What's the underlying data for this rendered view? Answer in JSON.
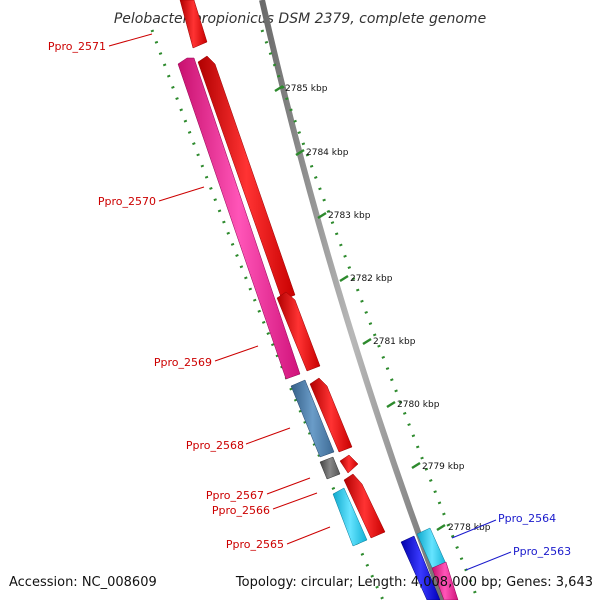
{
  "title": "Pelobacter propionicus DSM 2379, complete genome",
  "accession_text": "Accession: NC_008609",
  "summary_text": "Topology: circular; Length: 4,008,000 bp; Genes: 3,643",
  "colors": {
    "backbone": "#8a8a8a",
    "tick": "#2d8a2d",
    "label_red": "#cc0000",
    "label_blue": "#1a1acc",
    "gene_red": "#ee1111",
    "gene_pink": "#ee2299",
    "gene_steelblue": "#4a7fb0",
    "gene_gray": "#666666",
    "gene_cyan": "#22ccee",
    "gene_blue": "#1010dd"
  },
  "kbp_markers": [
    "2785 kbp",
    "2784 kbp",
    "2783 kbp",
    "2782 kbp",
    "2781 kbp",
    "2780 kbp",
    "2779 kbp",
    "2778 kbp"
  ],
  "gene_labels": [
    "Ppro_2571",
    "Ppro_2570",
    "Ppro_2569",
    "Ppro_2568",
    "Ppro_2567",
    "Ppro_2566",
    "Ppro_2565",
    "Ppro_2564",
    "Ppro_2563"
  ]
}
